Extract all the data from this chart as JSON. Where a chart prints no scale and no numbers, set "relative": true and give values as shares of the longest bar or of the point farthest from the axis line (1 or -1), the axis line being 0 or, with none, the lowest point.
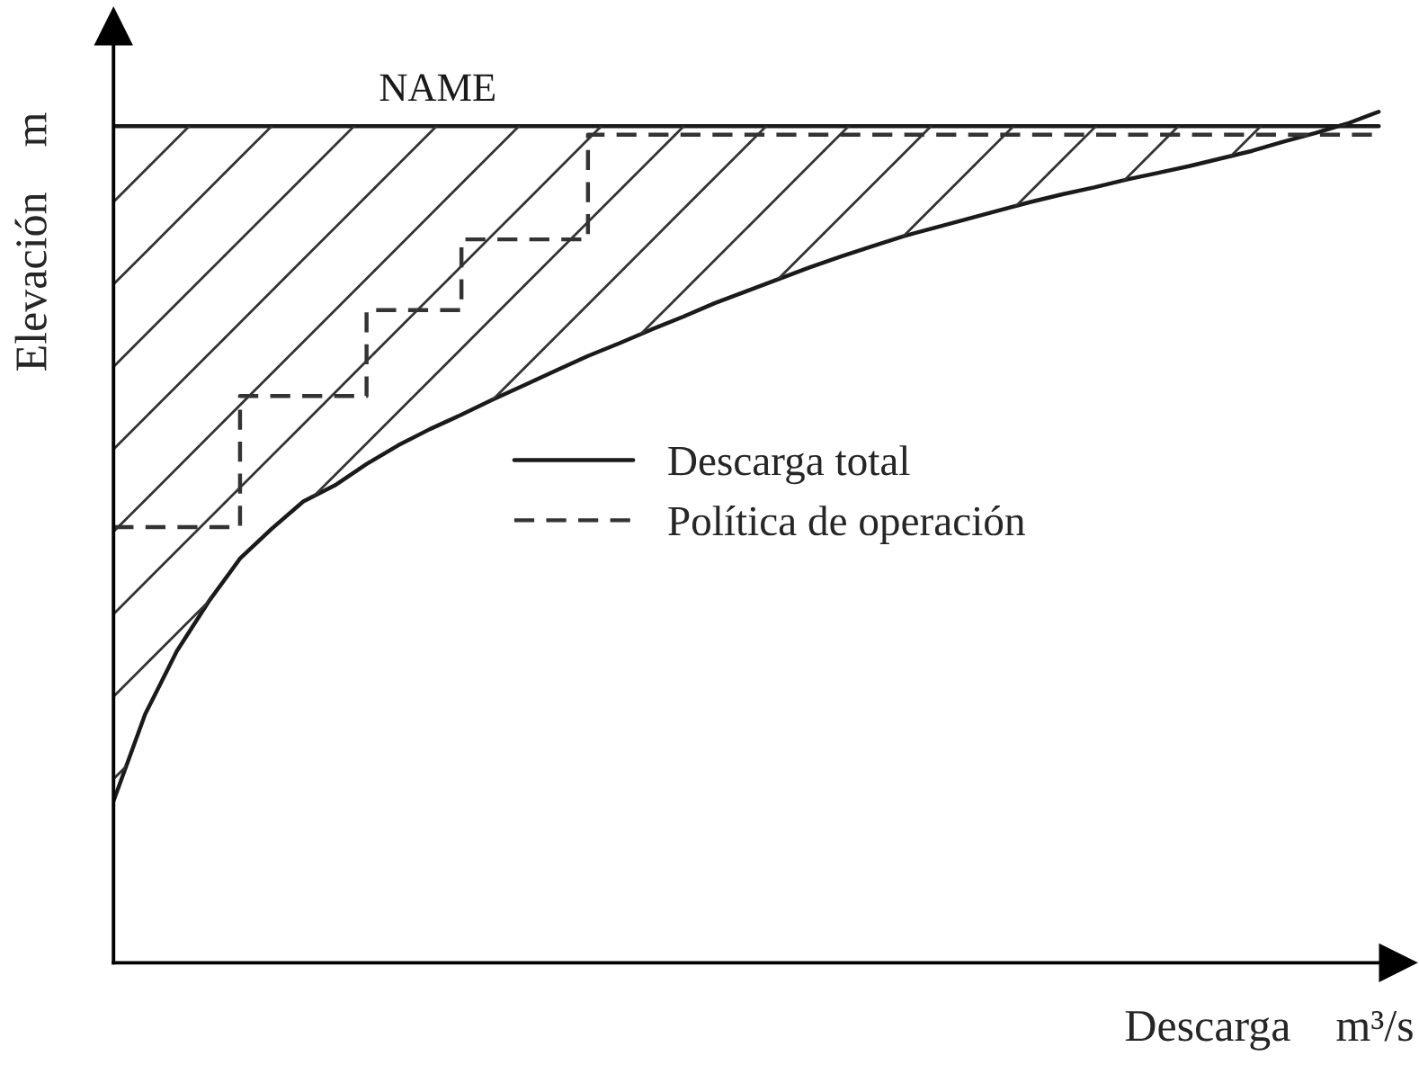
{
  "chart_data": {
    "type": "line",
    "relative": true,
    "xlabel": "Descarga    m³/s",
    "ylabel": "Elevación    m",
    "legend": "right",
    "categories": [
      null,
      null,
      null,
      null,
      null,
      null,
      null,
      null,
      null,
      null,
      null,
      null,
      null,
      null,
      null,
      null,
      null,
      null,
      null,
      null,
      null,
      null,
      null,
      null,
      null,
      null,
      null,
      null,
      null,
      null,
      null,
      null,
      null,
      null,
      null,
      null,
      null,
      null,
      null,
      null,
      null
    ],
    "series": [
      {
        "name": "Descarga total",
        "color": "#1a1a1a",
        "line_style": "solid",
        "values": [
          0.19,
          0.292,
          0.366,
          0.424,
          0.475,
          0.51,
          0.542,
          0.561,
          0.586,
          0.608,
          0.627,
          0.644,
          0.662,
          0.679,
          0.696,
          0.713,
          0.728,
          0.744,
          0.759,
          0.775,
          0.789,
          0.803,
          0.817,
          0.83,
          0.842,
          0.854,
          0.864,
          0.874,
          0.884,
          0.894,
          0.903,
          0.911,
          0.92,
          0.928,
          0.936,
          0.945,
          0.954,
          0.965,
          0.975,
          0.986,
          1.0
        ]
      },
      {
        "name": "Política de operación",
        "type": "step",
        "color": "#333333",
        "line_style": "dashed",
        "values": [
          0.512,
          0.512,
          0.512,
          0.512,
          0.666,
          0.666,
          0.666,
          0.666,
          0.767,
          0.767,
          0.767,
          0.85,
          0.85,
          0.85,
          0.85,
          0.973,
          0.973,
          0.973,
          0.973,
          0.973,
          0.973,
          0.973,
          0.973,
          0.973,
          0.973,
          0.973,
          0.973,
          0.973,
          0.973,
          0.973,
          0.973,
          0.973,
          0.973,
          0.973,
          0.973,
          0.973,
          0.973,
          0.973,
          0.973,
          0.973,
          0.973
        ]
      },
      {
        "name": "NAME",
        "color": "#1a1a1a",
        "line_style": "solid",
        "values": [
          0.983,
          0.983,
          0.983,
          0.983,
          0.983,
          0.983,
          0.983,
          0.983,
          0.983,
          0.983,
          0.983,
          0.983,
          0.983,
          0.983,
          0.983,
          0.983,
          0.983,
          0.983,
          0.983,
          0.983,
          0.983,
          0.983,
          0.983,
          0.983,
          0.983,
          0.983,
          0.983,
          0.983,
          0.983,
          0.983,
          0.983,
          0.983,
          0.983,
          0.983,
          0.983,
          0.983,
          0.983,
          0.983,
          0.983,
          0.983,
          0.983
        ]
      }
    ]
  }
}
